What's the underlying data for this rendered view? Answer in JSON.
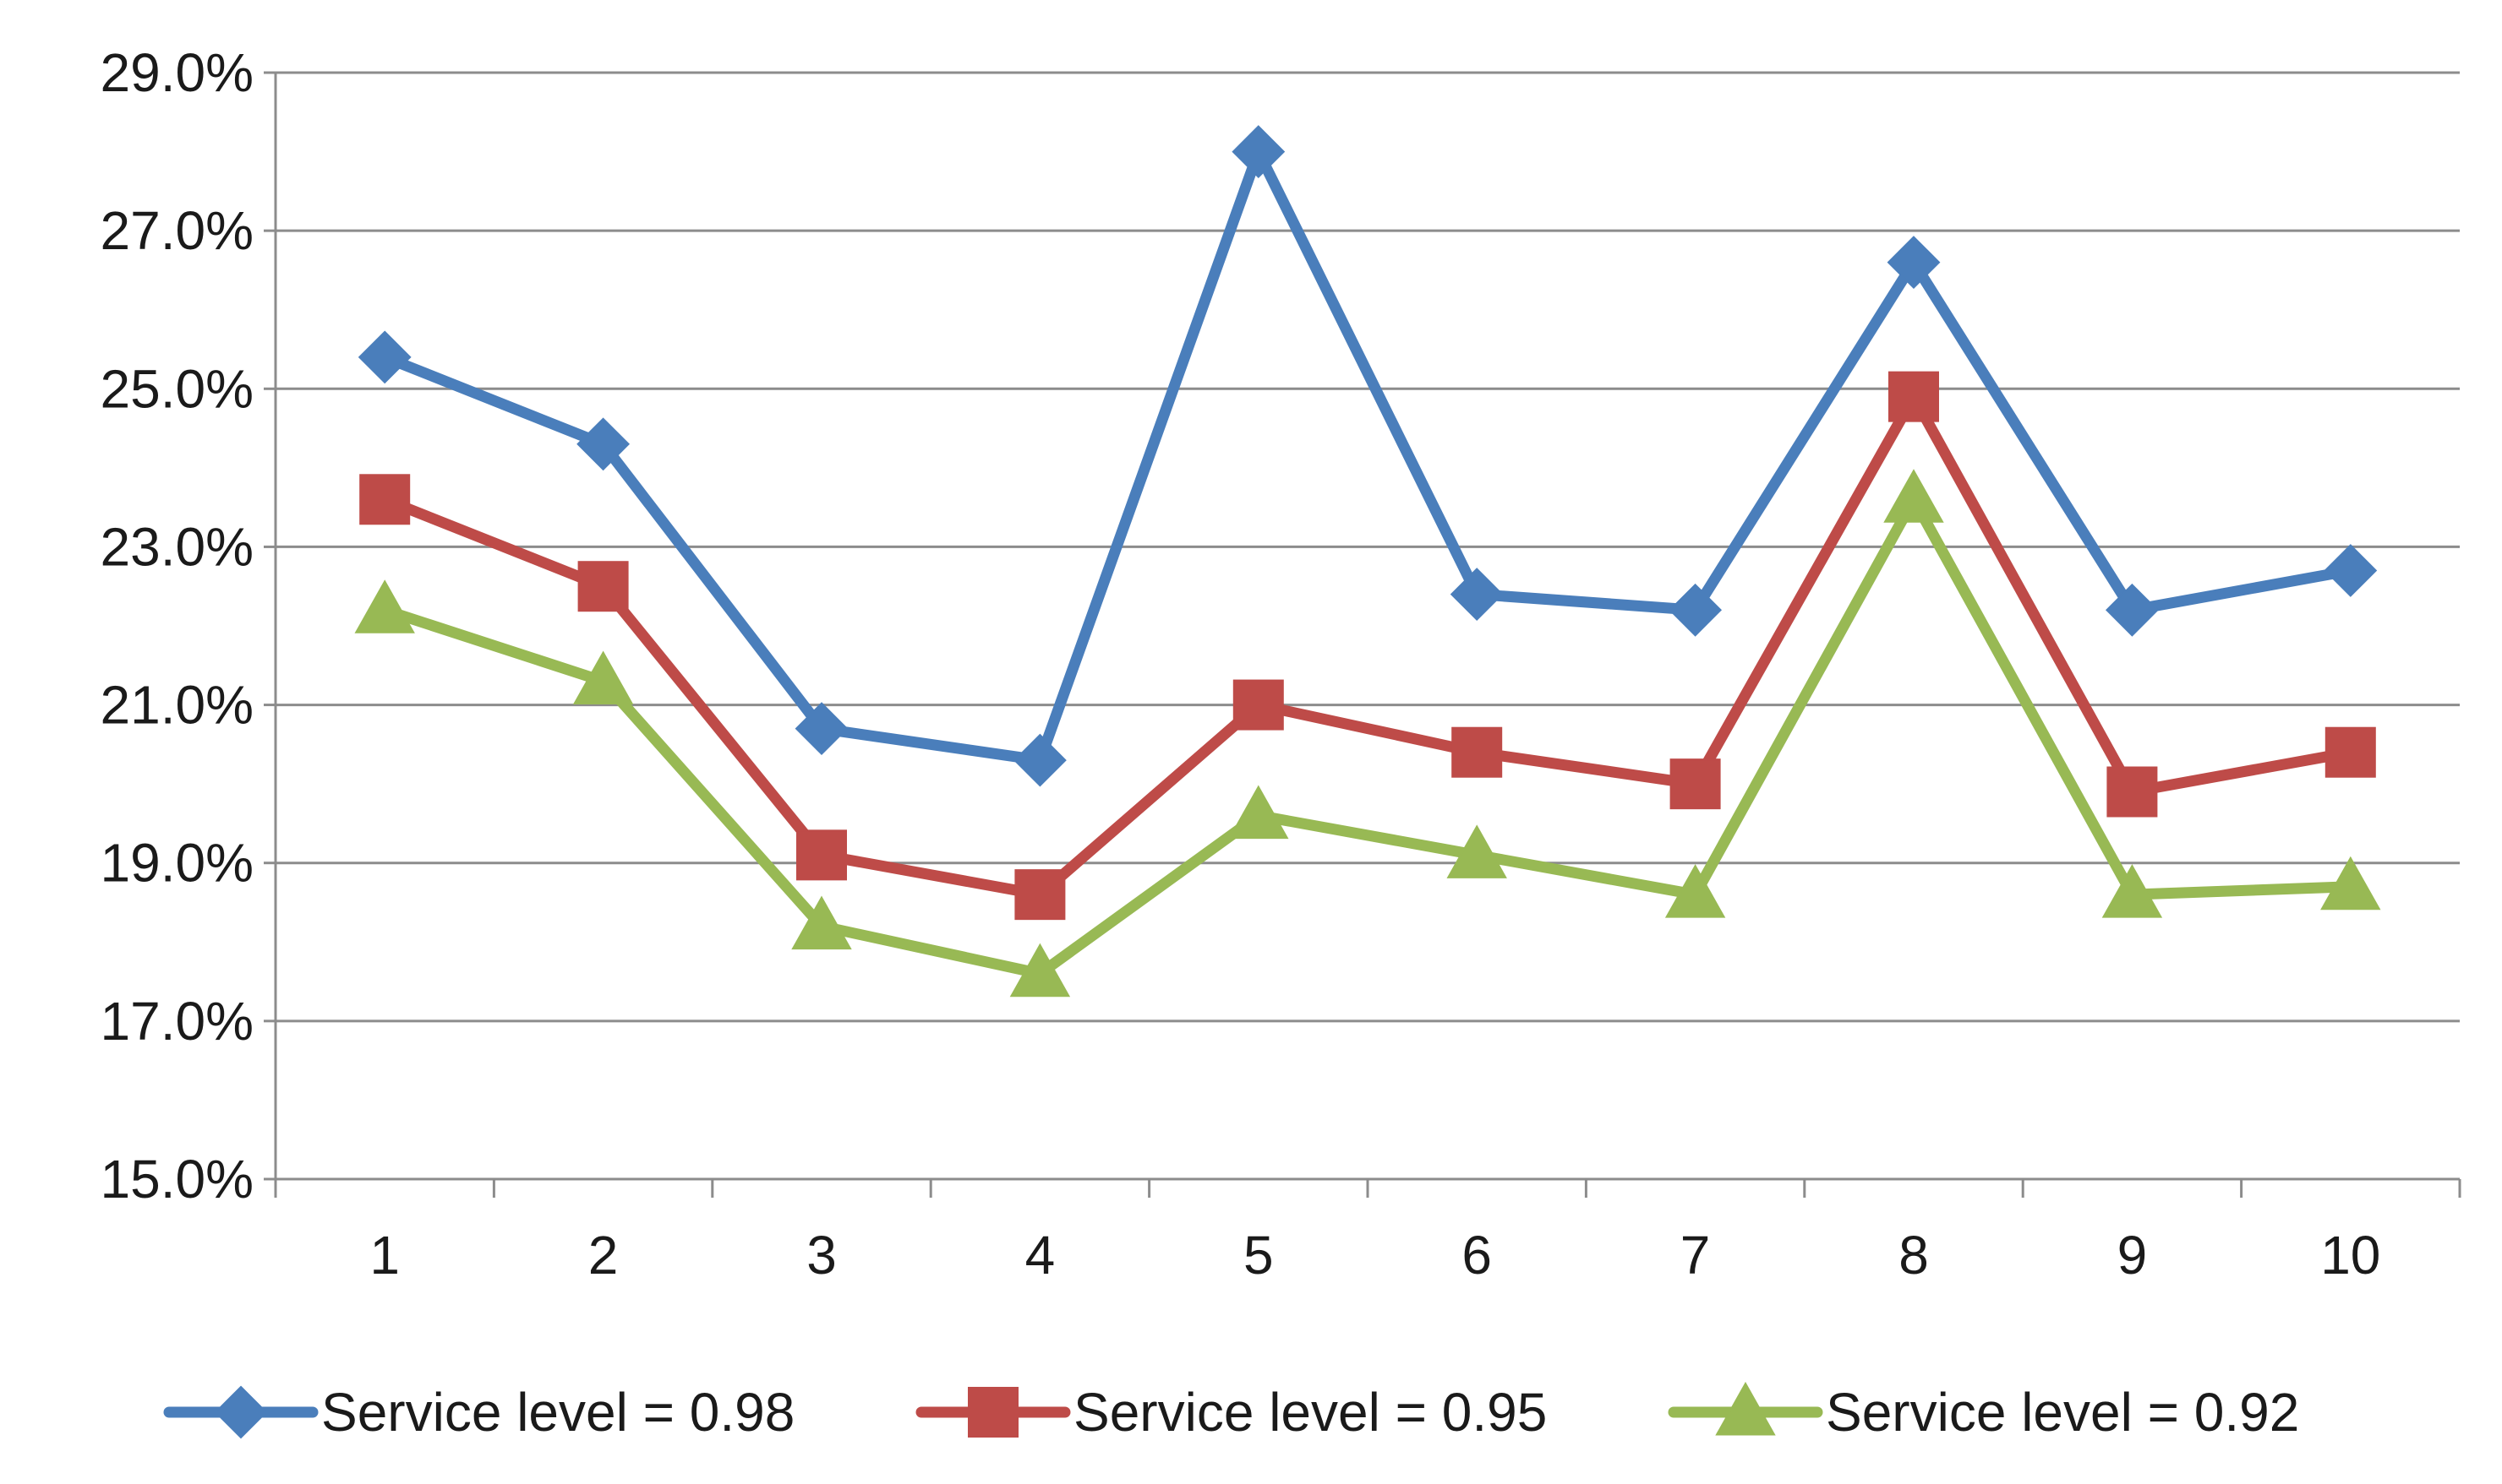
{
  "chart_data": {
    "type": "line",
    "title": "",
    "xlabel": "",
    "ylabel": "",
    "categories": [
      "1",
      "2",
      "3",
      "4",
      "5",
      "6",
      "7",
      "8",
      "9",
      "10"
    ],
    "ylim": [
      15.0,
      29.0
    ],
    "yticks": [
      15.0,
      17.0,
      19.0,
      21.0,
      23.0,
      25.0,
      27.0,
      29.0
    ],
    "ytick_labels": [
      "15.0%",
      "17.0%",
      "19.0%",
      "21.0%",
      "23.0%",
      "25.0%",
      "27.0%",
      "29.0%"
    ],
    "grid": true,
    "legend_position": "bottom",
    "series": [
      {
        "name": "Service level = 0.98",
        "color": "#4a7ebb",
        "marker": "diamond",
        "values": [
          25.4,
          24.3,
          20.7,
          20.3,
          28.0,
          22.4,
          22.2,
          26.6,
          22.2,
          22.7
        ]
      },
      {
        "name": "Service level = 0.95",
        "color": "#be4b48",
        "marker": "square",
        "values": [
          23.6,
          22.5,
          19.1,
          18.6,
          21.0,
          20.4,
          20.0,
          24.9,
          19.9,
          20.4
        ]
      },
      {
        "name": "Service level = 0.92",
        "color": "#98b954",
        "marker": "triangle",
        "values": [
          22.2,
          21.3,
          18.2,
          17.6,
          19.6,
          19.1,
          18.6,
          23.6,
          18.6,
          18.7
        ]
      }
    ]
  }
}
